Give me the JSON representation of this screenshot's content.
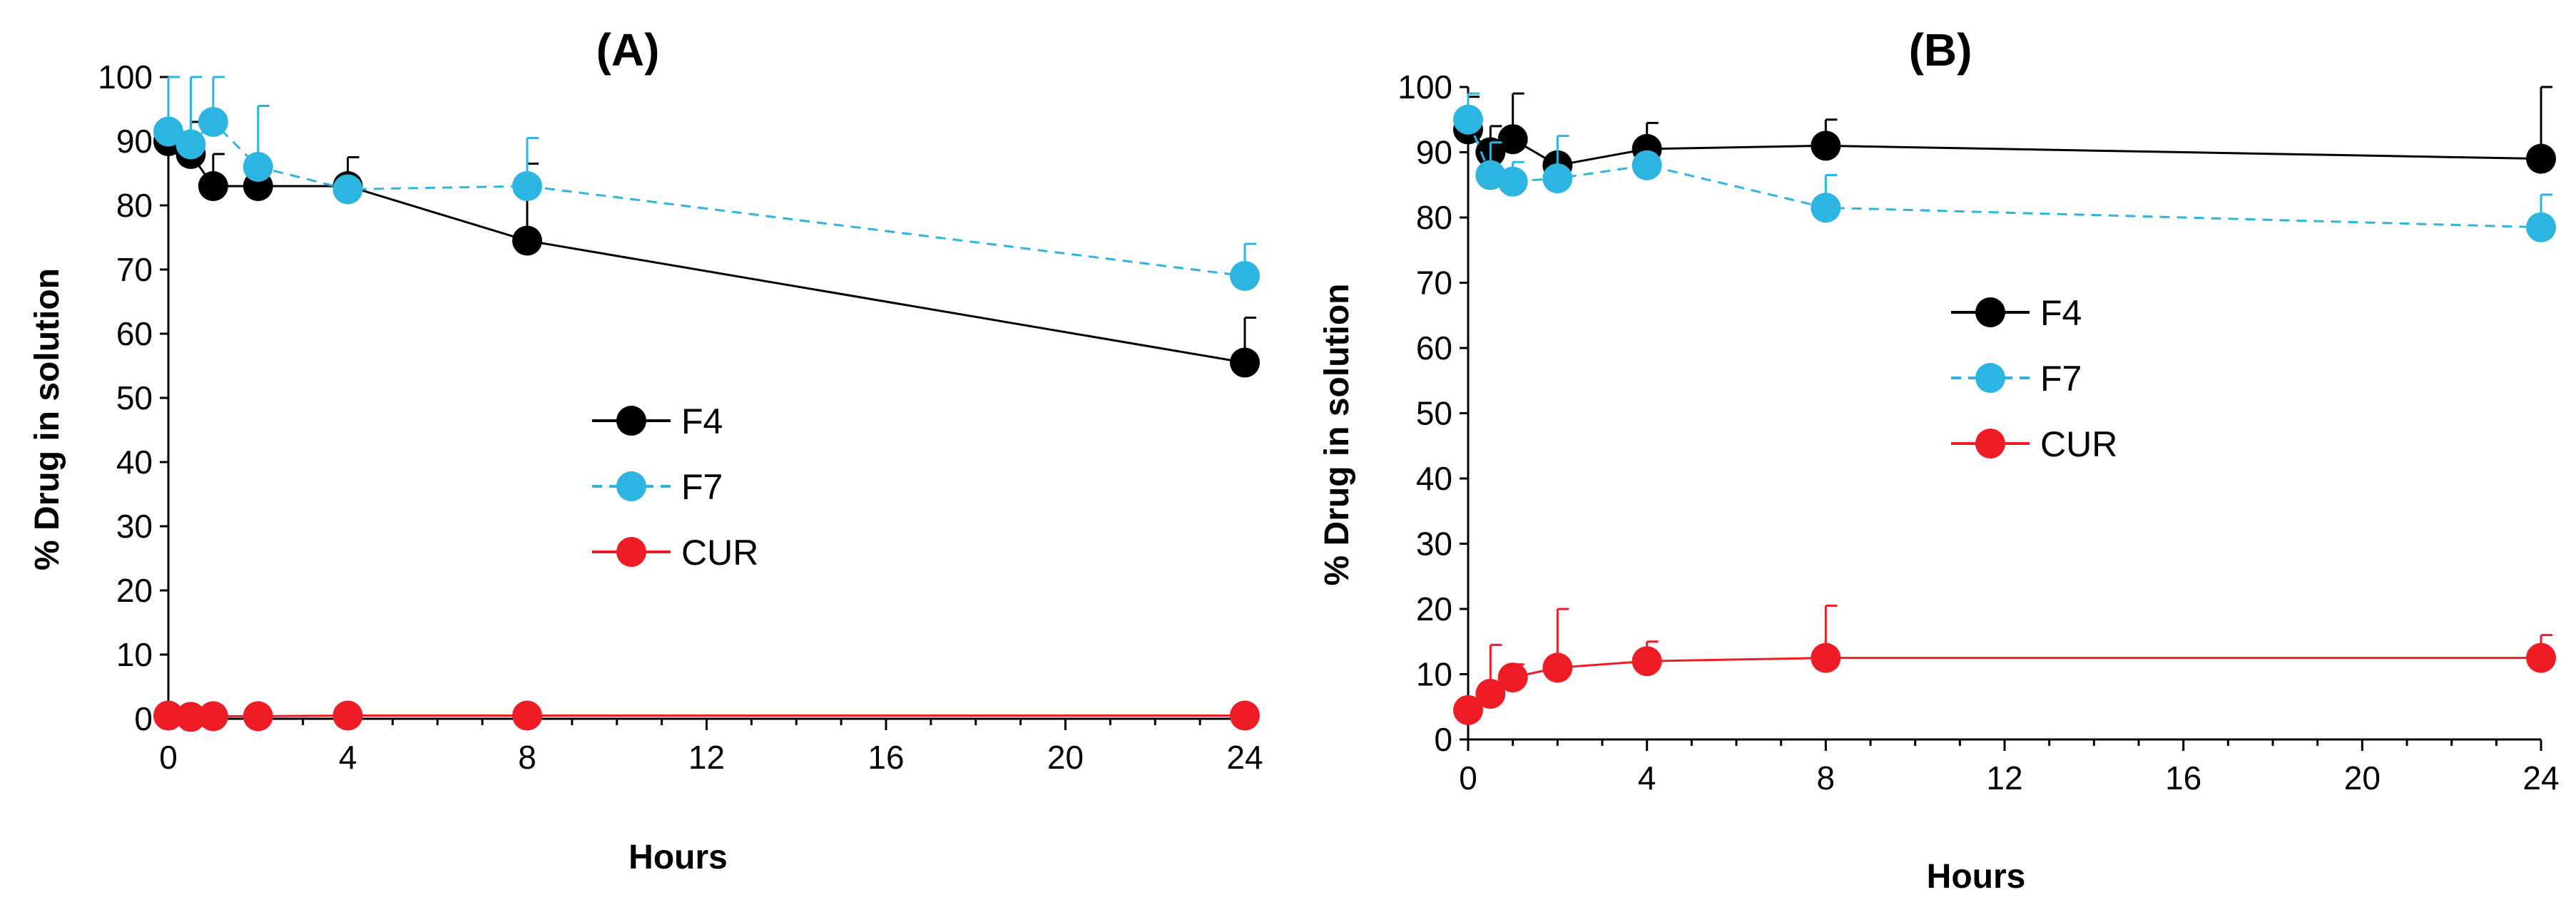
{
  "chart_data": [
    {
      "type": "line",
      "title": "(A)",
      "xlabel": "Hours",
      "ylabel": "% Drug  in solution",
      "xlim": [
        0,
        24
      ],
      "ylim": [
        0,
        100
      ],
      "xticks": [
        0,
        4,
        8,
        12,
        16,
        20,
        24
      ],
      "yticks": [
        0,
        10,
        20,
        30,
        40,
        50,
        60,
        70,
        80,
        90,
        100
      ],
      "legend_position": "center",
      "series": [
        {
          "name": "F4",
          "color": "#000000",
          "line_style": "solid",
          "x": [
            0,
            0.5,
            1,
            2,
            4,
            8,
            24
          ],
          "y": [
            90,
            88,
            83,
            83,
            83,
            74.5,
            55.5
          ],
          "error": [
            10,
            5,
            5,
            0,
            4.5,
            12,
            7
          ]
        },
        {
          "name": "F7",
          "color": "#2BB5E0",
          "line_style": "dashed",
          "x": [
            0,
            0.5,
            1,
            2,
            4,
            8,
            24
          ],
          "y": [
            91.5,
            89.5,
            93,
            86,
            82.5,
            83,
            69
          ],
          "error": [
            9,
            10.5,
            7.5,
            9.5,
            0,
            7.5,
            5
          ]
        },
        {
          "name": "CUR",
          "color": "#EE1C24",
          "line_style": "solid",
          "x": [
            0,
            0.5,
            1,
            2,
            4,
            8,
            24
          ],
          "y": [
            0.5,
            0.3,
            0.4,
            0.4,
            0.5,
            0.5,
            0.5
          ],
          "error": [
            0,
            0,
            0,
            0,
            0,
            0,
            0
          ]
        }
      ]
    },
    {
      "type": "line",
      "title": "(B)",
      "xlabel": "Hours",
      "ylabel": "% Drug in solution",
      "xlim": [
        0,
        24
      ],
      "ylim": [
        0,
        100
      ],
      "xticks": [
        0,
        4,
        8,
        12,
        16,
        20,
        24
      ],
      "yticks": [
        0,
        10,
        20,
        30,
        40,
        50,
        60,
        70,
        80,
        90,
        100
      ],
      "legend_position": "center",
      "series": [
        {
          "name": "F4",
          "color": "#000000",
          "line_style": "solid",
          "x": [
            0,
            0.5,
            1,
            2,
            4,
            8,
            24
          ],
          "y": [
            93.5,
            90,
            92,
            88,
            90.5,
            91,
            89
          ],
          "error": [
            5,
            4,
            7,
            0,
            4,
            4,
            11
          ]
        },
        {
          "name": "F7",
          "color": "#2BB5E0",
          "line_style": "dashed",
          "x": [
            0,
            0.5,
            1,
            2,
            4,
            8,
            24
          ],
          "y": [
            95,
            86.5,
            85.5,
            86,
            88,
            81.5,
            78.5
          ],
          "error": [
            4,
            5,
            3,
            6.5,
            0,
            5,
            5
          ]
        },
        {
          "name": "CUR",
          "color": "#EE1C24",
          "line_style": "solid",
          "x": [
            0,
            0.5,
            1,
            2,
            4,
            8,
            24
          ],
          "y": [
            4.5,
            7,
            9.5,
            11,
            12,
            12.5,
            12.5
          ],
          "error": [
            0,
            7.5,
            2,
            9,
            3,
            8,
            3.5
          ]
        }
      ]
    }
  ]
}
